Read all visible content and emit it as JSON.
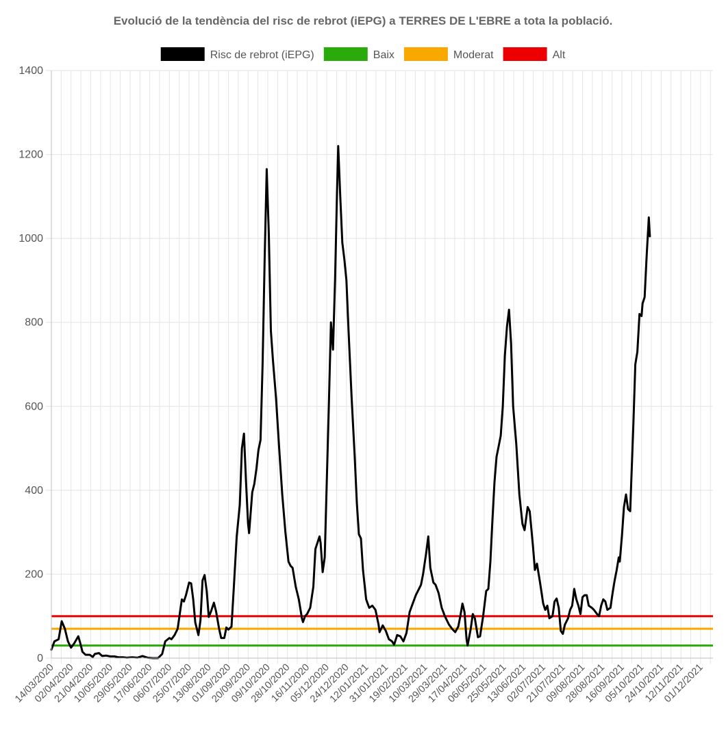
{
  "chart_data": {
    "type": "line",
    "title": "Evolució de la tendència del risc de rebrot (iEPG) a TERRES DE L'EBRE a tota la població.",
    "xlabel": "",
    "ylabel": "",
    "ylim": [
      0,
      1400
    ],
    "yticks": [
      0,
      200,
      400,
      600,
      800,
      1000,
      1200,
      1400
    ],
    "grid": true,
    "legend_position": "top",
    "x_start": "14/03/2020",
    "x_end": "13/12/2021",
    "x_tick_labels": [
      "14/03/2020",
      "02/04/2020",
      "21/04/2020",
      "10/05/2020",
      "29/05/2020",
      "17/06/2020",
      "06/07/2020",
      "25/07/2020",
      "13/08/2020",
      "01/09/2020",
      "20/09/2020",
      "09/10/2020",
      "28/10/2020",
      "16/11/2020",
      "05/12/2020",
      "24/12/2020",
      "12/01/2021",
      "31/01/2021",
      "19/02/2021",
      "10/03/2021",
      "29/03/2021",
      "17/04/2021",
      "06/05/2021",
      "25/05/2021",
      "13/06/2021",
      "02/07/2021",
      "21/07/2021",
      "09/08/2021",
      "28/08/2021",
      "16/09/2021",
      "05/10/2021",
      "24/10/2021",
      "12/11/2021",
      "01/12/2021"
    ],
    "series": [
      {
        "name": "Risc de rebrot (iEPG)",
        "color": "#000000",
        "points": [
          [
            "14/03/2020",
            20
          ],
          [
            "17/03/2020",
            40
          ],
          [
            "21/03/2020",
            45
          ],
          [
            "24/03/2020",
            88
          ],
          [
            "27/03/2020",
            70
          ],
          [
            "30/03/2020",
            40
          ],
          [
            "02/04/2020",
            25
          ],
          [
            "05/04/2020",
            35
          ],
          [
            "09/04/2020",
            52
          ],
          [
            "11/04/2020",
            35
          ],
          [
            "13/04/2020",
            15
          ],
          [
            "16/04/2020",
            8
          ],
          [
            "20/04/2020",
            8
          ],
          [
            "23/04/2020",
            3
          ],
          [
            "25/04/2020",
            10
          ],
          [
            "29/04/2020",
            12
          ],
          [
            "02/05/2020",
            5
          ],
          [
            "06/05/2020",
            6
          ],
          [
            "10/05/2020",
            4
          ],
          [
            "14/05/2020",
            4
          ],
          [
            "18/05/2020",
            2
          ],
          [
            "22/05/2020",
            2
          ],
          [
            "26/05/2020",
            1
          ],
          [
            "31/05/2020",
            2
          ],
          [
            "05/06/2020",
            1
          ],
          [
            "10/06/2020",
            5
          ],
          [
            "15/06/2020",
            1
          ],
          [
            "20/06/2020",
            0
          ],
          [
            "25/06/2020",
            0
          ],
          [
            "29/06/2020",
            10
          ],
          [
            "02/07/2020",
            40
          ],
          [
            "06/07/2020",
            48
          ],
          [
            "08/07/2020",
            45
          ],
          [
            "11/07/2020",
            55
          ],
          [
            "14/07/2020",
            70
          ],
          [
            "18/07/2020",
            140
          ],
          [
            "20/07/2020",
            135
          ],
          [
            "22/07/2020",
            150
          ],
          [
            "25/07/2020",
            180
          ],
          [
            "27/07/2020",
            178
          ],
          [
            "29/07/2020",
            140
          ],
          [
            "31/07/2020",
            85
          ],
          [
            "03/08/2020",
            55
          ],
          [
            "05/08/2020",
            90
          ],
          [
            "07/08/2020",
            185
          ],
          [
            "09/08/2020",
            198
          ],
          [
            "11/08/2020",
            160
          ],
          [
            "13/08/2020",
            98
          ],
          [
            "15/08/2020",
            110
          ],
          [
            "18/08/2020",
            132
          ],
          [
            "20/08/2020",
            112
          ],
          [
            "23/08/2020",
            70
          ],
          [
            "25/08/2020",
            48
          ],
          [
            "28/08/2020",
            48
          ],
          [
            "30/08/2020",
            73
          ],
          [
            "01/09/2020",
            68
          ],
          [
            "04/09/2020",
            75
          ],
          [
            "06/09/2020",
            160
          ],
          [
            "09/09/2020",
            290
          ],
          [
            "12/09/2020",
            365
          ],
          [
            "14/09/2020",
            500
          ],
          [
            "16/09/2020",
            535
          ],
          [
            "18/09/2020",
            420
          ],
          [
            "20/09/2020",
            320
          ],
          [
            "21/09/2020",
            298
          ],
          [
            "24/09/2020",
            395
          ],
          [
            "26/09/2020",
            415
          ],
          [
            "28/09/2020",
            450
          ],
          [
            "30/09/2020",
            495
          ],
          [
            "02/10/2020",
            520
          ],
          [
            "04/10/2020",
            700
          ],
          [
            "06/10/2020",
            950
          ],
          [
            "08/10/2020",
            1165
          ],
          [
            "10/10/2020",
            1010
          ],
          [
            "12/10/2020",
            780
          ],
          [
            "14/10/2020",
            710
          ],
          [
            "17/10/2020",
            620
          ],
          [
            "20/10/2020",
            500
          ],
          [
            "23/10/2020",
            390
          ],
          [
            "26/10/2020",
            300
          ],
          [
            "29/10/2020",
            230
          ],
          [
            "31/10/2020",
            220
          ],
          [
            "02/11/2020",
            215
          ],
          [
            "05/11/2020",
            170
          ],
          [
            "08/11/2020",
            140
          ],
          [
            "11/11/2020",
            95
          ],
          [
            "12/11/2020",
            86
          ],
          [
            "14/11/2020",
            100
          ],
          [
            "16/11/2020",
            105
          ],
          [
            "19/11/2020",
            120
          ],
          [
            "22/11/2020",
            170
          ],
          [
            "24/11/2020",
            260
          ],
          [
            "26/11/2020",
            275
          ],
          [
            "28/11/2020",
            290
          ],
          [
            "29/11/2020",
            275
          ],
          [
            "01/12/2020",
            205
          ],
          [
            "03/12/2020",
            240
          ],
          [
            "05/12/2020",
            420
          ],
          [
            "07/12/2020",
            600
          ],
          [
            "09/12/2020",
            800
          ],
          [
            "11/12/2020",
            735
          ],
          [
            "13/12/2020",
            900
          ],
          [
            "15/12/2020",
            1120
          ],
          [
            "16/12/2020",
            1220
          ],
          [
            "18/12/2020",
            1100
          ],
          [
            "20/12/2020",
            990
          ],
          [
            "22/12/2020",
            950
          ],
          [
            "24/12/2020",
            900
          ],
          [
            "26/12/2020",
            780
          ],
          [
            "29/12/2020",
            620
          ],
          [
            "01/01/2021",
            480
          ],
          [
            "03/01/2021",
            370
          ],
          [
            "05/01/2021",
            295
          ],
          [
            "07/01/2021",
            285
          ],
          [
            "09/01/2021",
            210
          ],
          [
            "12/01/2021",
            140
          ],
          [
            "15/01/2021",
            120
          ],
          [
            "18/01/2021",
            125
          ],
          [
            "21/01/2021",
            115
          ],
          [
            "24/01/2021",
            80
          ],
          [
            "25/01/2021",
            62
          ],
          [
            "28/01/2021",
            78
          ],
          [
            "31/01/2021",
            65
          ],
          [
            "03/02/2021",
            45
          ],
          [
            "06/02/2021",
            40
          ],
          [
            "08/02/2021",
            32
          ],
          [
            "11/02/2021",
            55
          ],
          [
            "14/02/2021",
            52
          ],
          [
            "17/02/2021",
            40
          ],
          [
            "20/02/2021",
            60
          ],
          [
            "23/02/2021",
            110
          ],
          [
            "26/02/2021",
            130
          ],
          [
            "01/03/2021",
            150
          ],
          [
            "04/03/2021",
            165
          ],
          [
            "06/03/2021",
            175
          ],
          [
            "08/03/2021",
            200
          ],
          [
            "11/03/2021",
            250
          ],
          [
            "13/03/2021",
            290
          ],
          [
            "15/03/2021",
            215
          ],
          [
            "18/03/2021",
            180
          ],
          [
            "20/03/2021",
            175
          ],
          [
            "23/03/2021",
            155
          ],
          [
            "26/03/2021",
            120
          ],
          [
            "29/03/2021",
            100
          ],
          [
            "02/04/2021",
            80
          ],
          [
            "05/04/2021",
            70
          ],
          [
            "08/04/2021",
            62
          ],
          [
            "11/04/2021",
            75
          ],
          [
            "13/04/2021",
            100
          ],
          [
            "15/04/2021",
            130
          ],
          [
            "17/04/2021",
            110
          ],
          [
            "19/04/2021",
            45
          ],
          [
            "20/04/2021",
            30
          ],
          [
            "23/04/2021",
            70
          ],
          [
            "25/04/2021",
            105
          ],
          [
            "27/04/2021",
            95
          ],
          [
            "30/04/2021",
            50
          ],
          [
            "02/05/2021",
            52
          ],
          [
            "05/05/2021",
            100
          ],
          [
            "08/05/2021",
            160
          ],
          [
            "10/05/2021",
            165
          ],
          [
            "12/05/2021",
            230
          ],
          [
            "14/05/2021",
            330
          ],
          [
            "16/05/2021",
            420
          ],
          [
            "18/05/2021",
            480
          ],
          [
            "20/05/2021",
            505
          ],
          [
            "22/05/2021",
            530
          ],
          [
            "24/05/2021",
            600
          ],
          [
            "26/05/2021",
            720
          ],
          [
            "28/05/2021",
            790
          ],
          [
            "30/05/2021",
            830
          ],
          [
            "01/06/2021",
            750
          ],
          [
            "03/06/2021",
            600
          ],
          [
            "06/06/2021",
            510
          ],
          [
            "09/06/2021",
            390
          ],
          [
            "12/06/2021",
            320
          ],
          [
            "14/06/2021",
            305
          ],
          [
            "17/06/2021",
            360
          ],
          [
            "19/06/2021",
            350
          ],
          [
            "22/06/2021",
            270
          ],
          [
            "24/06/2021",
            210
          ],
          [
            "26/06/2021",
            225
          ],
          [
            "29/06/2021",
            180
          ],
          [
            "02/07/2021",
            130
          ],
          [
            "04/07/2021",
            115
          ],
          [
            "06/07/2021",
            125
          ],
          [
            "08/07/2021",
            95
          ],
          [
            "11/07/2021",
            100
          ],
          [
            "13/07/2021",
            135
          ],
          [
            "15/07/2021",
            142
          ],
          [
            "17/07/2021",
            120
          ],
          [
            "19/07/2021",
            65
          ],
          [
            "21/07/2021",
            58
          ],
          [
            "23/07/2021",
            80
          ],
          [
            "26/07/2021",
            95
          ],
          [
            "28/07/2021",
            115
          ],
          [
            "30/07/2021",
            125
          ],
          [
            "01/08/2021",
            165
          ],
          [
            "03/08/2021",
            140
          ],
          [
            "05/08/2021",
            125
          ],
          [
            "07/08/2021",
            105
          ],
          [
            "09/08/2021",
            145
          ],
          [
            "11/08/2021",
            150
          ],
          [
            "13/08/2021",
            150
          ],
          [
            "15/08/2021",
            125
          ],
          [
            "18/08/2021",
            120
          ],
          [
            "20/08/2021",
            115
          ],
          [
            "23/08/2021",
            105
          ],
          [
            "25/08/2021",
            100
          ],
          [
            "27/08/2021",
            125
          ],
          [
            "29/08/2021",
            140
          ],
          [
            "31/08/2021",
            135
          ],
          [
            "02/09/2021",
            115
          ],
          [
            "05/09/2021",
            120
          ],
          [
            "07/09/2021",
            155
          ],
          [
            "09/09/2021",
            185
          ],
          [
            "11/09/2021",
            210
          ],
          [
            "13/09/2021",
            240
          ],
          [
            "14/09/2021",
            230
          ],
          [
            "16/09/2021",
            290
          ],
          [
            "18/09/2021",
            360
          ],
          [
            "20/09/2021",
            390
          ],
          [
            "22/09/2021",
            355
          ],
          [
            "24/09/2021",
            350
          ],
          [
            "27/09/2021",
            550
          ],
          [
            "29/09/2021",
            700
          ],
          [
            "01/10/2021",
            730
          ],
          [
            "03/10/2021",
            820
          ],
          [
            "05/10/2021",
            815
          ],
          [
            "06/10/2021",
            845
          ],
          [
            "08/10/2021",
            860
          ],
          [
            "10/10/2021",
            960
          ],
          [
            "12/10/2021",
            1050
          ],
          [
            "13/10/2021",
            1005
          ]
        ]
      },
      {
        "name": "Baix",
        "color": "#2aab0b",
        "value": 30
      },
      {
        "name": "Moderat",
        "color": "#f9a800",
        "value": 70
      },
      {
        "name": "Alt",
        "color": "#ee0000",
        "value": 100
      }
    ]
  }
}
